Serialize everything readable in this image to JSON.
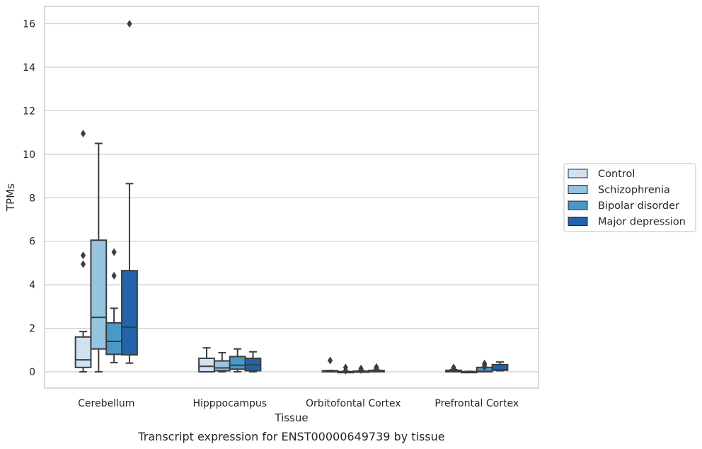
{
  "chart_data": {
    "type": "box",
    "title": "",
    "caption": "Transcript expression for ENST00000649739 by tissue",
    "xlabel": "Tissue",
    "ylabel": "TPMs",
    "ylim": [
      -0.75,
      16.8
    ],
    "yticks": [
      0,
      2,
      4,
      6,
      8,
      10,
      12,
      14,
      16
    ],
    "grid": "horizontal",
    "legend_position": "right",
    "categories": [
      "Cerebellum",
      "Hipppocampus",
      "Orbitofontal Cortex",
      "Prefrontal Cortex"
    ],
    "series": [
      {
        "name": "Control",
        "color": "#d0e1f2",
        "boxes": [
          {
            "whislo": 0.0,
            "q1": 0.2,
            "med": 0.55,
            "q3": 1.6,
            "whishi": 1.85,
            "fliers": [
              4.95,
              5.35,
              10.95
            ]
          },
          {
            "whislo": 0.0,
            "q1": 0.0,
            "med": 0.25,
            "q3": 0.62,
            "whishi": 1.1,
            "fliers": []
          },
          {
            "whislo": 0.0,
            "q1": 0.0,
            "med": 0.02,
            "q3": 0.05,
            "whishi": 0.06,
            "fliers": [
              0.52
            ]
          },
          {
            "whislo": 0.0,
            "q1": 0.0,
            "med": 0.02,
            "q3": 0.07,
            "whishi": 0.1,
            "fliers": [
              0.15,
              0.2
            ]
          }
        ]
      },
      {
        "name": "Schizophrenia",
        "color": "#94c4df",
        "boxes": [
          {
            "whislo": 0.0,
            "q1": 1.05,
            "med": 2.5,
            "q3": 6.05,
            "whishi": 10.5,
            "fliers": []
          },
          {
            "whislo": 0.0,
            "q1": 0.05,
            "med": 0.18,
            "q3": 0.5,
            "whishi": 0.88,
            "fliers": []
          },
          {
            "whislo": 0.0,
            "q1": 0.0,
            "med": 0.0,
            "q3": 0.01,
            "whishi": 0.02,
            "fliers": [
              0.05,
              0.2
            ]
          },
          {
            "whislo": 0.0,
            "q1": 0.0,
            "med": 0.0,
            "q3": 0.01,
            "whishi": 0.02,
            "fliers": []
          }
        ]
      },
      {
        "name": "Bipolar disorder",
        "color": "#4a98c9",
        "boxes": [
          {
            "whislo": 0.42,
            "q1": 0.8,
            "med": 1.4,
            "q3": 2.25,
            "whishi": 2.92,
            "fliers": [
              4.42,
              5.5
            ]
          },
          {
            "whislo": 0.0,
            "q1": 0.12,
            "med": 0.3,
            "q3": 0.7,
            "whishi": 1.05,
            "fliers": []
          },
          {
            "whislo": 0.0,
            "q1": 0.0,
            "med": 0.02,
            "q3": 0.03,
            "whishi": 0.05,
            "fliers": [
              0.08,
              0.15
            ]
          },
          {
            "whislo": 0.0,
            "q1": 0.0,
            "med": 0.02,
            "q3": 0.2,
            "whishi": 0.2,
            "fliers": [
              0.22,
              0.3,
              0.38
            ]
          }
        ]
      },
      {
        "name": "Major depression",
        "color": "#2164ab",
        "boxes": [
          {
            "whislo": 0.4,
            "q1": 0.78,
            "med": 2.05,
            "q3": 4.65,
            "whishi": 8.65,
            "fliers": [
              16.0
            ]
          },
          {
            "whislo": 0.0,
            "q1": 0.05,
            "med": 0.32,
            "q3": 0.62,
            "whishi": 0.92,
            "fliers": []
          },
          {
            "whislo": 0.0,
            "q1": 0.0,
            "med": 0.02,
            "q3": 0.06,
            "whishi": 0.08,
            "fliers": [
              0.15,
              0.22
            ]
          },
          {
            "whislo": 0.05,
            "q1": 0.07,
            "med": 0.1,
            "q3": 0.33,
            "whishi": 0.45,
            "fliers": []
          }
        ]
      }
    ]
  }
}
